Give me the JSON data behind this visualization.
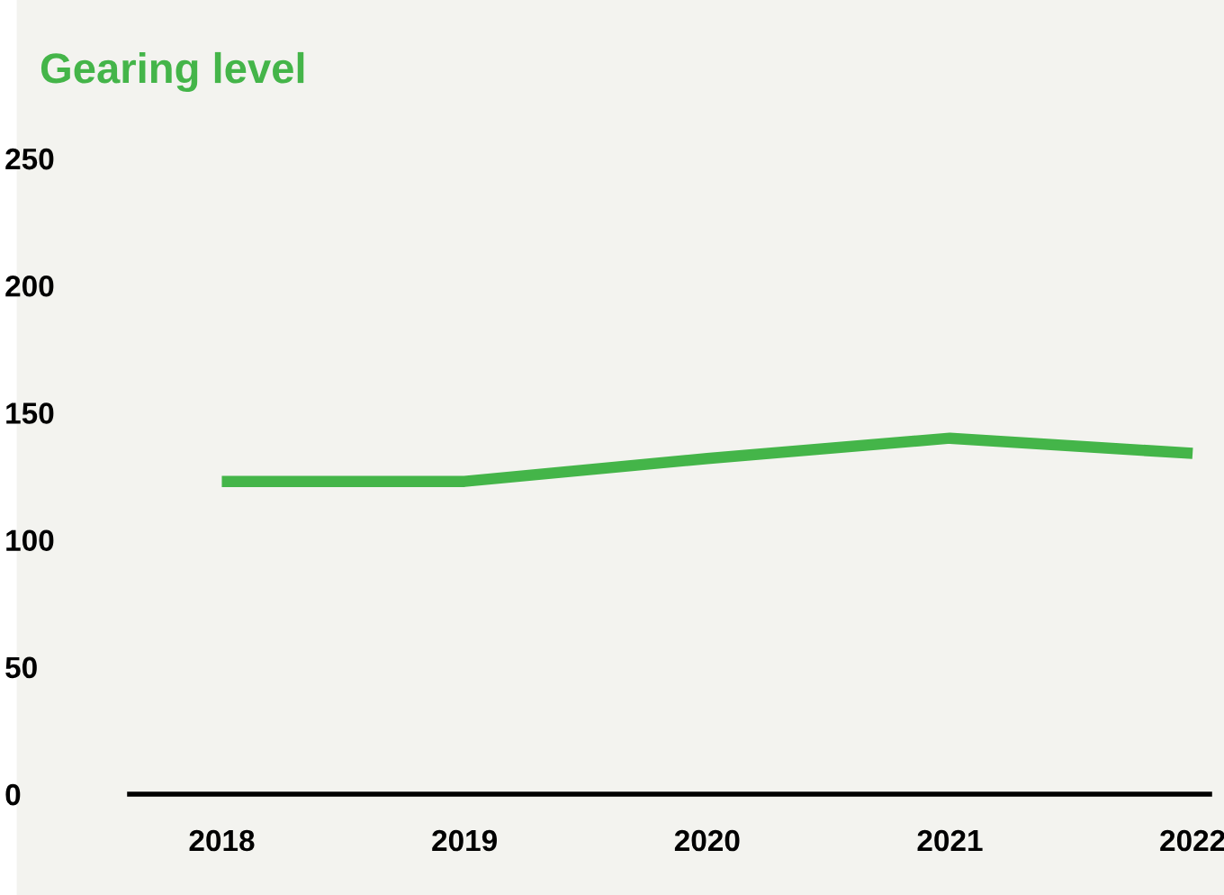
{
  "chart_data": {
    "type": "line",
    "title": "Gearing level",
    "categories": [
      "2018",
      "2019",
      "2020",
      "2021",
      "2022"
    ],
    "series": [
      {
        "color": "#44b549",
        "values": [
          123,
          123,
          132,
          140,
          134
        ]
      }
    ],
    "ylim": [
      0,
      250
    ],
    "yticks": [
      0,
      50,
      100,
      150,
      200,
      250
    ],
    "grid": false,
    "legend": false,
    "marker": "none",
    "line_style": "solid"
  }
}
